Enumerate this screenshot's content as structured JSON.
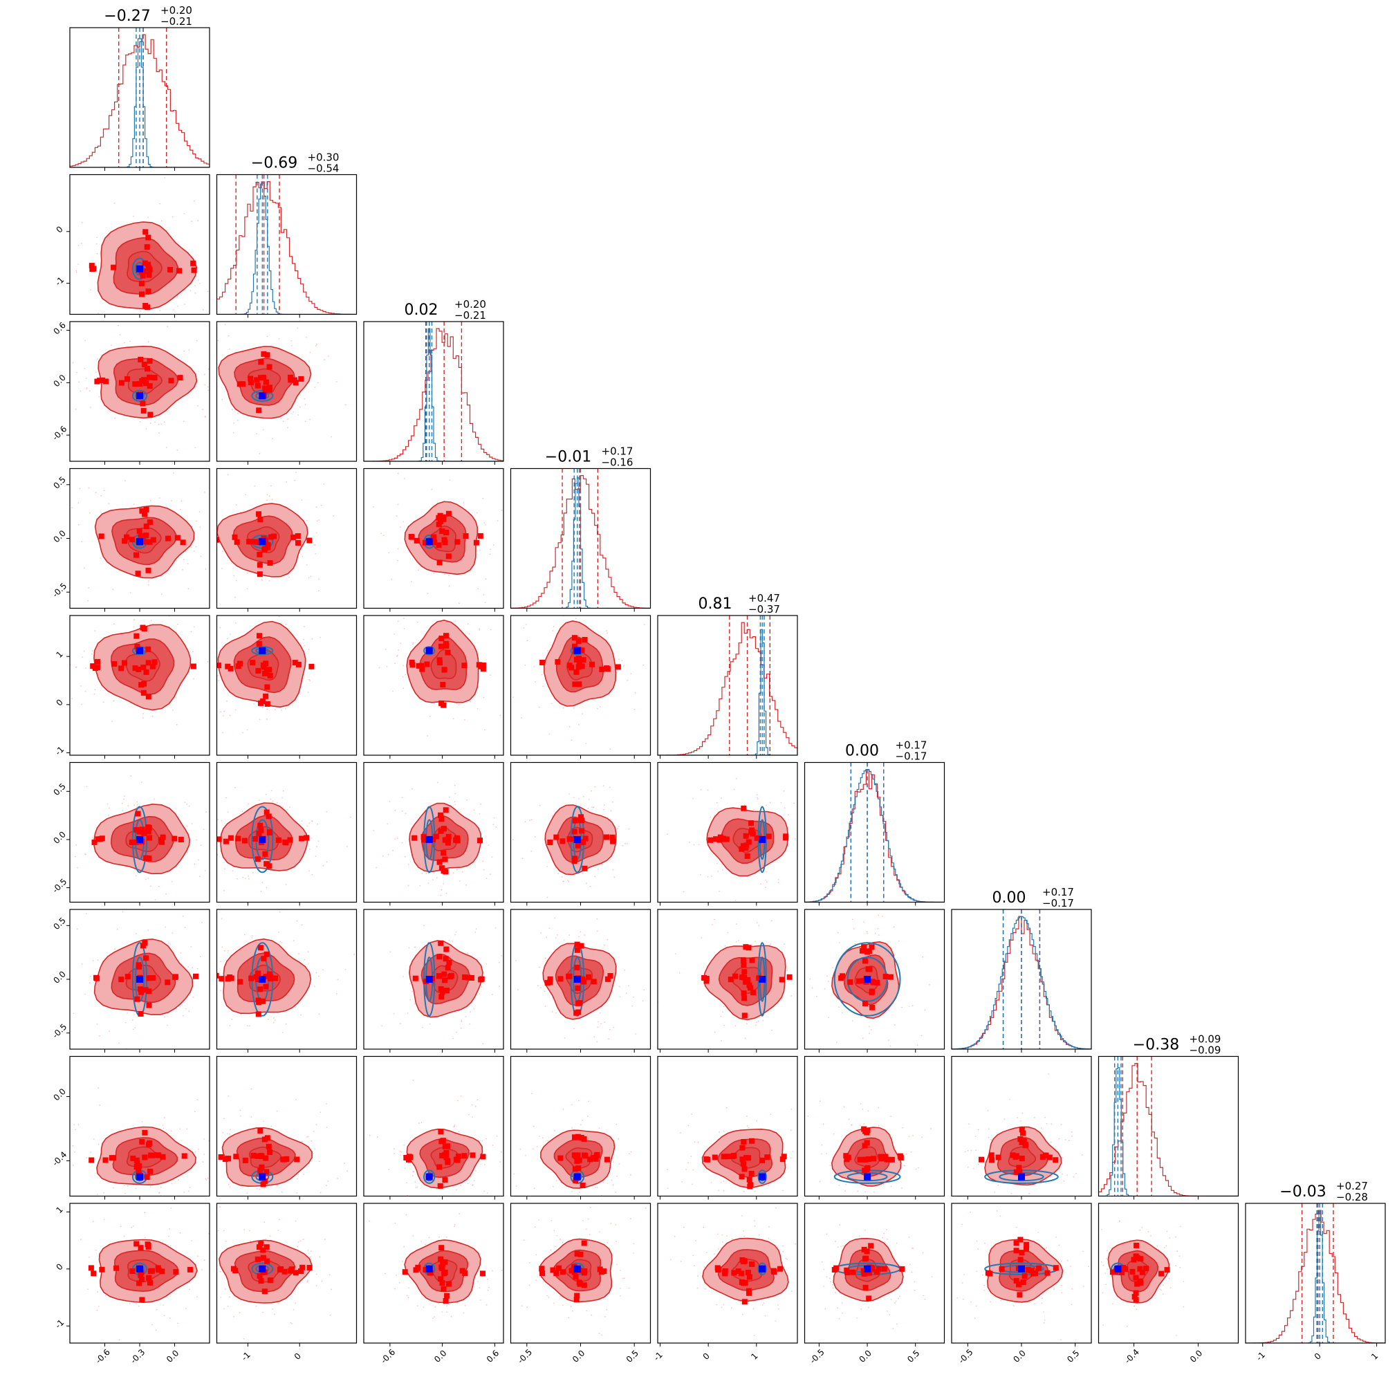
{
  "chart_data": {
    "type": "corner",
    "n_params": 9,
    "colors": {
      "posterior": "#d62728",
      "fill_dark": "#e04648",
      "fill_light": "#f2a6a6",
      "reference": "#1f77b4",
      "truth_marker": "#0000ff",
      "scatter_marker": "#ff0000"
    },
    "params": [
      {
        "median": -0.27,
        "plus": 0.2,
        "minus": 0.21,
        "range": [
          -0.9,
          0.3
        ],
        "ticks": [
          -0.6,
          -0.3,
          0.0
        ],
        "tick_labels": [
          "-0.6",
          "-0.3",
          "0.0"
        ],
        "ref_median": -0.3,
        "ref_sigma": 0.03,
        "title": {
          "main": "−0.27",
          "up": "+0.20",
          "down": "−0.21"
        }
      },
      {
        "median": -0.69,
        "plus": 0.3,
        "minus": 0.54,
        "range": [
          -1.6,
          1.1
        ],
        "ticks": [
          -1,
          0
        ],
        "tick_labels": [
          "-1",
          "0"
        ],
        "ref_median": -0.72,
        "ref_sigma": 0.1,
        "title": {
          "main": "−0.69",
          "up": "+0.30",
          "down": "−0.54"
        }
      },
      {
        "median": 0.02,
        "plus": 0.2,
        "minus": 0.21,
        "range": [
          -0.9,
          0.7
        ],
        "ticks": [
          -0.6,
          0.0,
          0.6
        ],
        "tick_labels": [
          "-0.6",
          "0.0",
          "0.6"
        ],
        "ref_median": -0.15,
        "ref_sigma": 0.03,
        "title": {
          "main": "0.02",
          "up": "+0.20",
          "down": "−0.21"
        }
      },
      {
        "median": -0.01,
        "plus": 0.17,
        "minus": 0.16,
        "range": [
          -0.65,
          0.65
        ],
        "ticks": [
          -0.5,
          0.0,
          0.5
        ],
        "tick_labels": [
          "-0.5",
          "0.0",
          "0.5"
        ],
        "ref_median": -0.03,
        "ref_sigma": 0.03,
        "title": {
          "main": "−0.01",
          "up": "+0.17",
          "down": "−0.16"
        }
      },
      {
        "median": 0.81,
        "plus": 0.47,
        "minus": 0.37,
        "range": [
          -1.05,
          1.85
        ],
        "ticks": [
          -1,
          0,
          1
        ],
        "tick_labels": [
          "-1",
          "0",
          "1"
        ],
        "ref_median": 1.12,
        "ref_sigma": 0.04,
        "title": {
          "main": "0.81",
          "up": "+0.47",
          "down": "−0.37"
        }
      },
      {
        "median": 0.0,
        "plus": 0.17,
        "minus": 0.17,
        "range": [
          -0.65,
          0.8
        ],
        "ticks": [
          -0.5,
          0.0,
          0.5
        ],
        "tick_labels": [
          "-0.5",
          "0.0",
          "0.5"
        ],
        "ref_median": 0.0,
        "ref_sigma": 0.17,
        "title": {
          "main": "0.00",
          "up": "+0.17",
          "down": "−0.17"
        }
      },
      {
        "median": 0.0,
        "plus": 0.17,
        "minus": 0.17,
        "range": [
          -0.65,
          0.65
        ],
        "ticks": [
          -0.5,
          0.0,
          0.5
        ],
        "tick_labels": [
          "-0.5",
          "0.0",
          "0.5"
        ],
        "ref_median": 0.0,
        "ref_sigma": 0.17,
        "title": {
          "main": "0.00",
          "up": "+0.17",
          "down": "−0.17"
        }
      },
      {
        "median": -0.38,
        "plus": 0.09,
        "minus": 0.09,
        "range": [
          -0.62,
          0.25
        ],
        "ticks": [
          -0.4,
          0.0
        ],
        "tick_labels": [
          "-0.4",
          "0.0"
        ],
        "ref_median": -0.5,
        "ref_sigma": 0.02,
        "title": {
          "main": "−0.38",
          "up": "+0.09",
          "down": "−0.09"
        }
      },
      {
        "median": -0.03,
        "plus": 0.27,
        "minus": 0.28,
        "range": [
          -1.3,
          1.15
        ],
        "ticks": [
          -1,
          0,
          1
        ],
        "tick_labels": [
          "-1",
          "0",
          "1"
        ],
        "ref_median": 0.0,
        "ref_sigma": 0.05,
        "title": {
          "main": "−0.03",
          "up": "+0.27",
          "down": "−0.28"
        }
      }
    ]
  }
}
